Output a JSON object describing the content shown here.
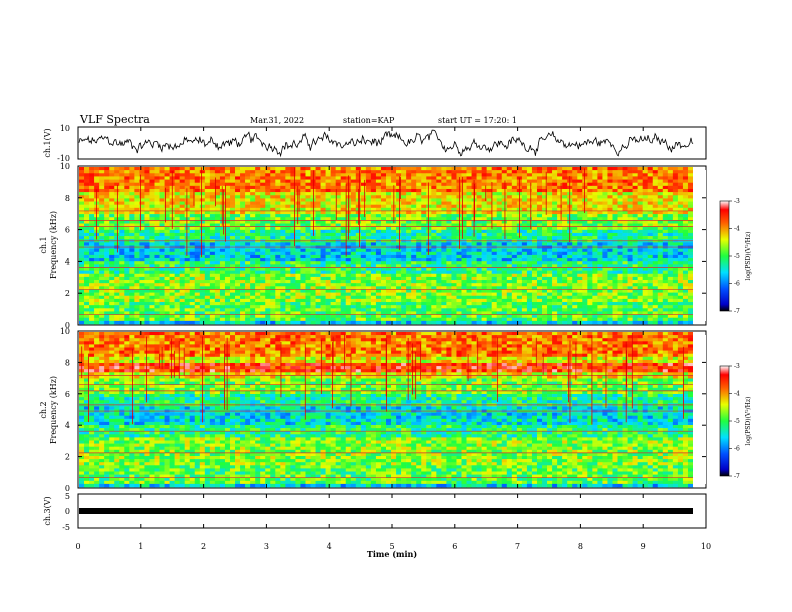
{
  "header": {
    "title": "VLF Spectra",
    "date": "Mar.31, 2022",
    "station": "station=KAP",
    "start": "start UT =  17:20: 1"
  },
  "chart_data": [
    {
      "type": "line",
      "title": "",
      "ylabel": "ch.1(V)",
      "xlim": [
        0,
        10
      ],
      "ylim": [
        -10,
        10
      ],
      "yticks": [
        "10",
        "-10"
      ],
      "series": [
        {
          "description": "noisy waveform oscillating roughly between -8 and 8 V"
        }
      ]
    },
    {
      "type": "heatmap",
      "ylabel": "ch.1\nFrequency (kHz)",
      "xlim": [
        0,
        10
      ],
      "ylim": [
        0,
        10
      ],
      "yticks": [
        "0",
        "2",
        "4",
        "6",
        "8",
        "10"
      ],
      "colorbar": {
        "label": "log(PSD)(V²/Hz)",
        "range": [
          -7,
          -3
        ],
        "ticks": [
          "-3",
          "-4",
          "-5",
          "-6",
          "-7"
        ]
      }
    },
    {
      "type": "heatmap",
      "ylabel": "ch.2\nFrequency (kHz)",
      "xlim": [
        0,
        10
      ],
      "ylim": [
        0,
        10
      ],
      "yticks": [
        "0",
        "2",
        "4",
        "6",
        "8",
        "10"
      ],
      "colorbar": {
        "label": "log(PSD)(V²/Hz)",
        "range": [
          -7,
          -3
        ],
        "ticks": [
          "-3",
          "-4",
          "-5",
          "-6",
          "-7"
        ]
      }
    },
    {
      "type": "line",
      "ylabel": "ch.3(V)",
      "xlim": [
        0,
        10
      ],
      "ylim": [
        -5,
        5
      ],
      "yticks": [
        "5",
        "0",
        "-5"
      ],
      "xlabel": "Time (min)",
      "xticks": [
        "0",
        "1",
        "2",
        "3",
        "4",
        "5",
        "6",
        "7",
        "8",
        "9",
        "10"
      ],
      "series": [
        {
          "description": "nearly flat thick line near 0 V"
        }
      ]
    }
  ],
  "colors": {
    "axis": "#000000",
    "line": "#000000"
  }
}
